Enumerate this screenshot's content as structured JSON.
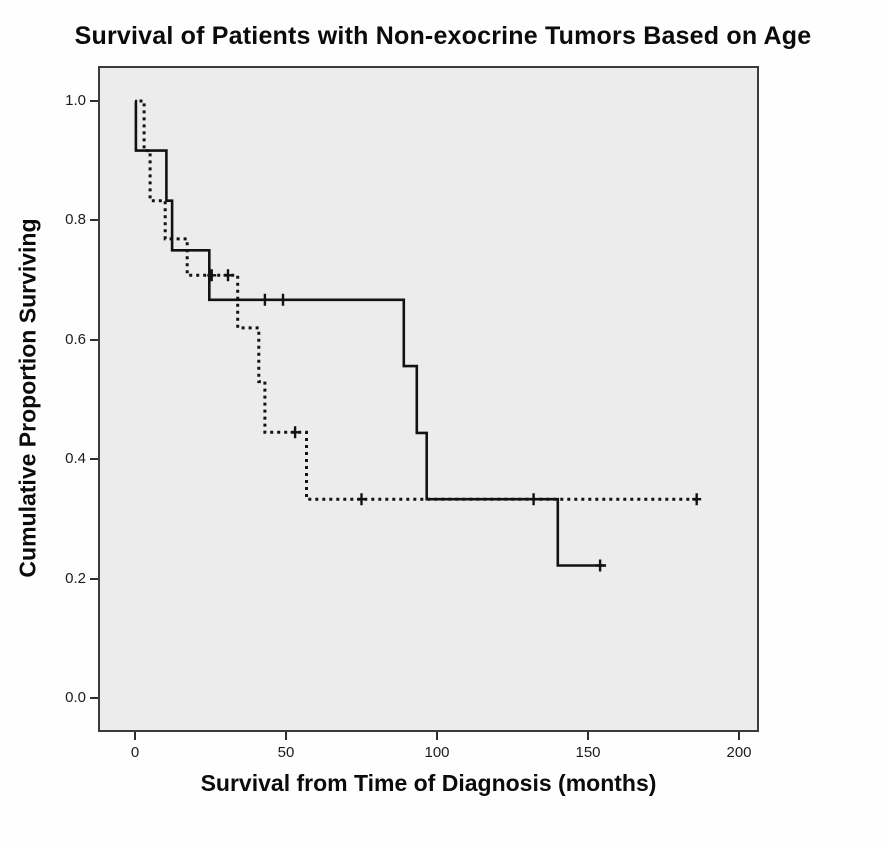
{
  "chart_data": {
    "type": "line",
    "subtype": "kaplan-meier-step",
    "title": "Survival of Patients with Non-exocrine Tumors Based on Age",
    "xlabel": "Survival from Time of Diagnosis (months)",
    "ylabel": "Cumulative Proportion Surviving",
    "grid": false,
    "legend": "none",
    "plot_background": "#ececec",
    "line_color": "#121212",
    "xlim": [
      -12,
      206
    ],
    "ylim": [
      -0.06,
      1.11
    ],
    "x_ticks": [
      {
        "label": "0",
        "value": 0
      },
      {
        "label": "50",
        "value": 50
      },
      {
        "label": "100",
        "value": 100
      },
      {
        "label": "150",
        "value": 150
      },
      {
        "label": "200",
        "value": 200
      }
    ],
    "y_ticks": [
      {
        "label": "0.0",
        "value": 0.0
      },
      {
        "label": "0.2",
        "value": 0.2
      },
      {
        "label": "0.4",
        "value": 0.4
      },
      {
        "label": "0.6",
        "value": 0.6
      },
      {
        "label": "0.8",
        "value": 0.8
      },
      {
        "label": "1.0",
        "value": 1.0
      }
    ],
    "series": [
      {
        "name": "group-1-solid",
        "style": "solid",
        "points": [
          [
            0,
            1.0
          ],
          [
            0.3,
            1.0
          ],
          [
            0.3,
            0.917
          ],
          [
            10.4,
            0.917
          ],
          [
            10.4,
            0.833
          ],
          [
            12.3,
            0.833
          ],
          [
            12.3,
            0.75
          ],
          [
            24.6,
            0.75
          ],
          [
            24.6,
            0.667
          ],
          [
            89,
            0.667
          ],
          [
            89,
            0.556
          ],
          [
            93.3,
            0.556
          ],
          [
            93.3,
            0.444
          ],
          [
            96.6,
            0.444
          ],
          [
            96.6,
            0.333
          ],
          [
            140,
            0.333
          ],
          [
            140,
            0.222
          ],
          [
            156,
            0.222
          ]
        ],
        "censor_marks": [
          [
            43,
            0.667
          ],
          [
            49,
            0.667
          ],
          [
            132,
            0.333
          ],
          [
            154,
            0.222
          ]
        ]
      },
      {
        "name": "group-2-dashed",
        "style": "dashed",
        "points": [
          [
            1.5,
            1.0
          ],
          [
            3,
            1.0
          ],
          [
            3,
            0.917
          ],
          [
            5,
            0.917
          ],
          [
            5,
            0.833
          ],
          [
            10,
            0.833
          ],
          [
            10,
            0.769
          ],
          [
            17.3,
            0.769
          ],
          [
            17.3,
            0.708
          ],
          [
            34,
            0.708
          ],
          [
            34,
            0.62
          ],
          [
            41,
            0.62
          ],
          [
            41,
            0.53
          ],
          [
            43,
            0.53
          ],
          [
            43,
            0.445
          ],
          [
            56.8,
            0.445
          ],
          [
            56.8,
            0.333
          ],
          [
            186,
            0.333
          ]
        ],
        "censor_marks": [
          [
            25.4,
            0.708
          ],
          [
            30.8,
            0.708
          ],
          [
            53,
            0.445
          ],
          [
            75,
            0.333
          ],
          [
            186,
            0.333
          ]
        ]
      }
    ]
  }
}
